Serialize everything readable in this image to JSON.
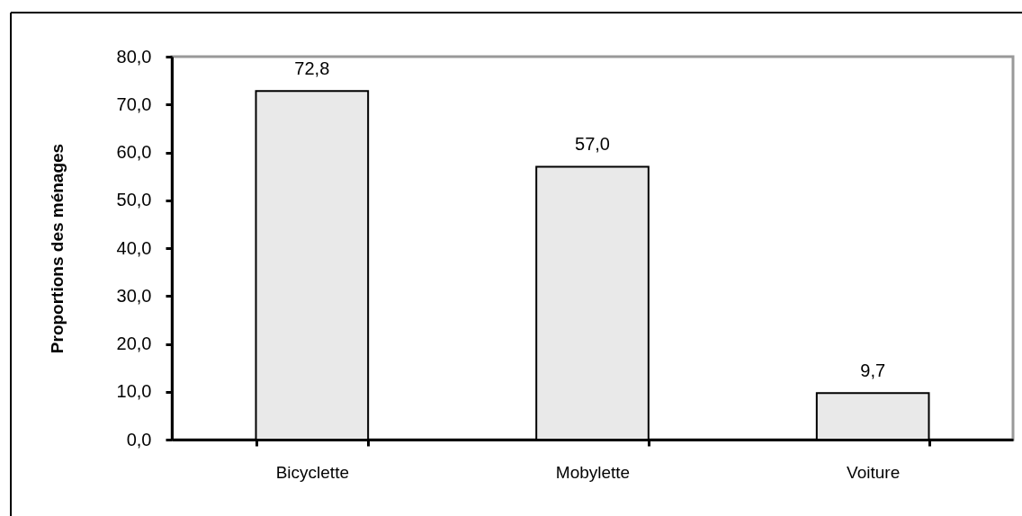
{
  "chart_data": {
    "type": "bar",
    "ylabel": "Proportions des ménages",
    "categories": [
      "Bicyclette",
      "Mobylette",
      "Voiture"
    ],
    "values": [
      72.8,
      57.0,
      9.7
    ],
    "color": "#e9e9e9",
    "value_labels": [
      "72,8",
      "57,0",
      "9,7"
    ],
    "ylim": [
      0,
      80
    ],
    "yticks": [
      {
        "value": 0,
        "label": "0,0"
      },
      {
        "value": 10,
        "label": "10,0"
      },
      {
        "value": 20,
        "label": "20,0"
      },
      {
        "value": 30,
        "label": "30,0"
      },
      {
        "value": 40,
        "label": "40,0"
      },
      {
        "value": 50,
        "label": "50,0"
      },
      {
        "value": 60,
        "label": "60,0"
      },
      {
        "value": 70,
        "label": "70,0"
      },
      {
        "value": 80,
        "label": "80,0"
      }
    ],
    "grid": false
  }
}
